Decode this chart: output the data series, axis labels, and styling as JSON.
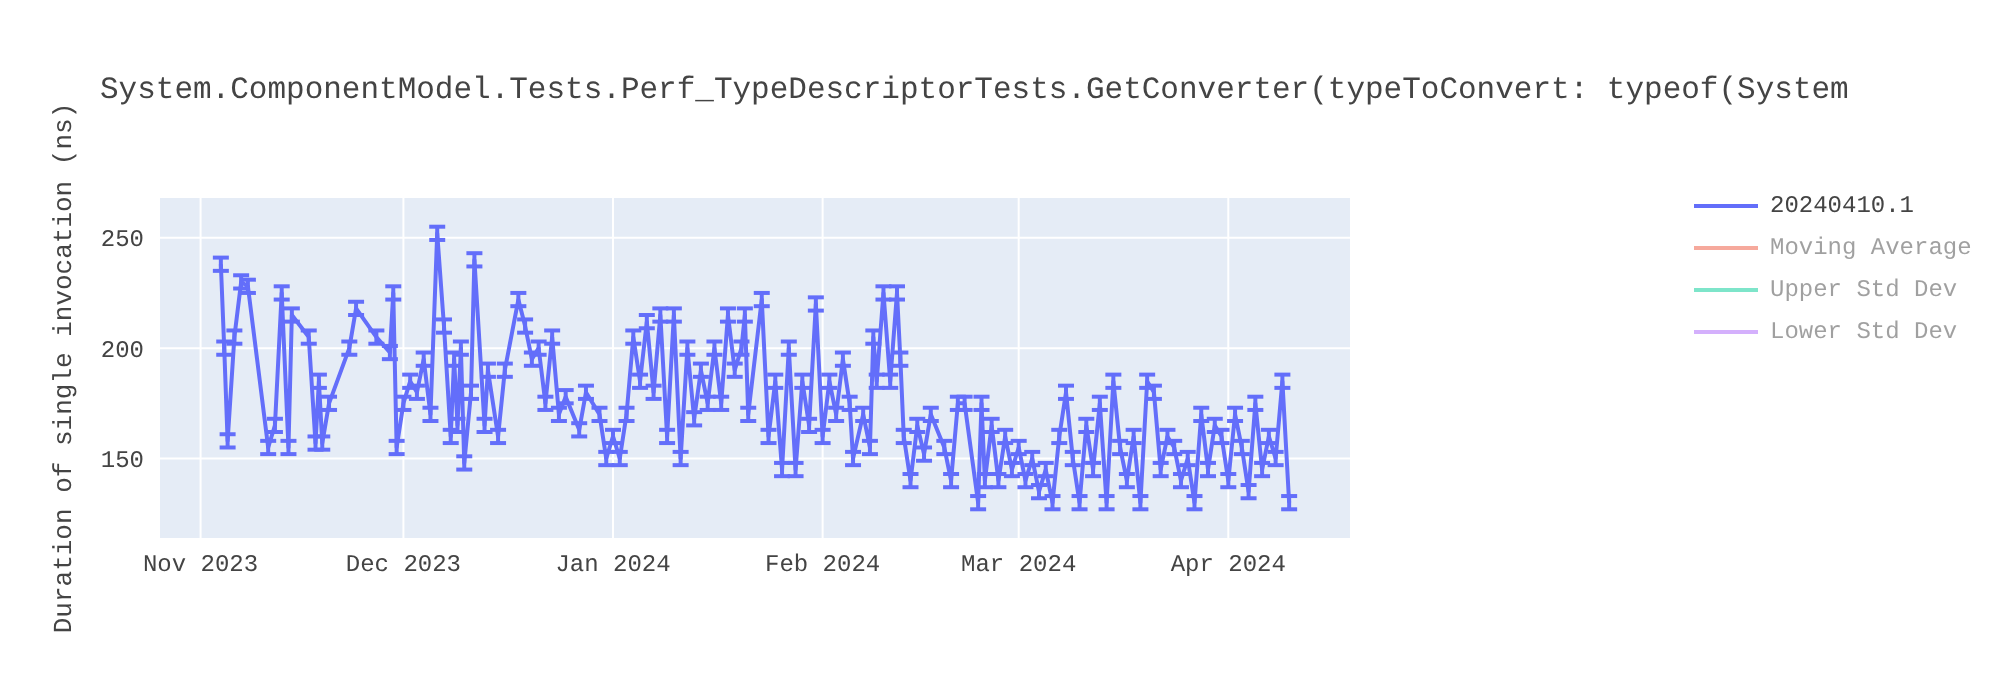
{
  "chart_data": {
    "type": "line",
    "title": "System.ComponentModel.Tests.Perf_TypeDescriptorTests.GetConverter(typeToConvert: typeof(System",
    "ylabel": "Duration of single invocation (ns)",
    "x": [
      "2023-11-04",
      "2023-11-04T12:00",
      "2023-11-05",
      "2023-11-06",
      "2023-11-07",
      "2023-11-08",
      "2023-11-11",
      "2023-11-12",
      "2023-11-13",
      "2023-11-14",
      "2023-11-14T12:00",
      "2023-11-17",
      "2023-11-18",
      "2023-11-18T12:00",
      "2023-11-19",
      "2023-11-20",
      "2023-11-23",
      "2023-11-24",
      "2023-11-27",
      "2023-11-29",
      "2023-11-29T12:00",
      "2023-11-30",
      "2023-12-01",
      "2023-12-02",
      "2023-12-03",
      "2023-12-04",
      "2023-12-05",
      "2023-12-06",
      "2023-12-07",
      "2023-12-08",
      "2023-12-08T12:00",
      "2023-12-09",
      "2023-12-09T12:00",
      "2023-12-10",
      "2023-12-11",
      "2023-12-11T12:00",
      "2023-12-13",
      "2023-12-13T12:00",
      "2023-12-15",
      "2023-12-16",
      "2023-12-18",
      "2023-12-19",
      "2023-12-20",
      "2023-12-21",
      "2023-12-22",
      "2023-12-23",
      "2023-12-24",
      "2023-12-25",
      "2023-12-27",
      "2023-12-28",
      "2023-12-30",
      "2023-12-31",
      "2024-01-01",
      "2024-01-02",
      "2024-01-03",
      "2024-01-04",
      "2024-01-05",
      "2024-01-06",
      "2024-01-07",
      "2024-01-08",
      "2024-01-09",
      "2024-01-10",
      "2024-01-11",
      "2024-01-12",
      "2024-01-13",
      "2024-01-14",
      "2024-01-15",
      "2024-01-16",
      "2024-01-17",
      "2024-01-18",
      "2024-01-19",
      "2024-01-20",
      "2024-01-20T12:00",
      "2024-01-21",
      "2024-01-23",
      "2024-01-24",
      "2024-01-25",
      "2024-01-26",
      "2024-01-27",
      "2024-01-28",
      "2024-01-29",
      "2024-01-30",
      "2024-01-31",
      "2024-02-01",
      "2024-02-02",
      "2024-02-03",
      "2024-02-04",
      "2024-02-05",
      "2024-02-05T12:00",
      "2024-02-07",
      "2024-02-08",
      "2024-02-08T12:00",
      "2024-02-09",
      "2024-02-10",
      "2024-02-11",
      "2024-02-12",
      "2024-02-12T12:00",
      "2024-02-13",
      "2024-02-14",
      "2024-02-15",
      "2024-02-16",
      "2024-02-17",
      "2024-02-19",
      "2024-02-20",
      "2024-02-21",
      "2024-02-22",
      "2024-02-24",
      "2024-02-24T12:00",
      "2024-02-25",
      "2024-02-26",
      "2024-02-27",
      "2024-02-28",
      "2024-02-29",
      "2024-03-01",
      "2024-03-02",
      "2024-03-03",
      "2024-03-04",
      "2024-03-05",
      "2024-03-06",
      "2024-03-07",
      "2024-03-08",
      "2024-03-09",
      "2024-03-10",
      "2024-03-11",
      "2024-03-12",
      "2024-03-13",
      "2024-03-14",
      "2024-03-15",
      "2024-03-16",
      "2024-03-17",
      "2024-03-18",
      "2024-03-19",
      "2024-03-20",
      "2024-03-21",
      "2024-03-22",
      "2024-03-23",
      "2024-03-24",
      "2024-03-25",
      "2024-03-26",
      "2024-03-27",
      "2024-03-28",
      "2024-03-29",
      "2024-03-30",
      "2024-03-31",
      "2024-04-01",
      "2024-04-02",
      "2024-04-03",
      "2024-04-04",
      "2024-04-05",
      "2024-04-06",
      "2024-04-07",
      "2024-04-08",
      "2024-04-09",
      "2024-04-10"
    ],
    "series": [
      {
        "name": "20240410.1",
        "color": "#636efa",
        "values": [
          238,
          200,
          158,
          205,
          230,
          228,
          155,
          165,
          225,
          155,
          215,
          205,
          157,
          185,
          157,
          175,
          200,
          218,
          205,
          198,
          225,
          155,
          175,
          185,
          180,
          195,
          170,
          252,
          210,
          160,
          195,
          165,
          200,
          148,
          180,
          240,
          165,
          190,
          160,
          190,
          222,
          210,
          195,
          200,
          175,
          205,
          170,
          178,
          163,
          180,
          170,
          150,
          160,
          150,
          170,
          205,
          185,
          212,
          180,
          215,
          160,
          215,
          150,
          200,
          168,
          190,
          175,
          200,
          175,
          215,
          190,
          200,
          215,
          170,
          222,
          160,
          185,
          145,
          200,
          145,
          185,
          165,
          220,
          160,
          185,
          170,
          195,
          175,
          150,
          170,
          155,
          205,
          185,
          225,
          185,
          225,
          195,
          160,
          140,
          165,
          152,
          170,
          155,
          140,
          175,
          175,
          130,
          175,
          140,
          165,
          140,
          160,
          145,
          155,
          140,
          150,
          135,
          145,
          130,
          160,
          180,
          150,
          130,
          165,
          145,
          175,
          130,
          185,
          155,
          140,
          160,
          130,
          185,
          180,
          145,
          160,
          155,
          140,
          150,
          130,
          170,
          145,
          165,
          160,
          140,
          170,
          155,
          135,
          175,
          145,
          160,
          150,
          185,
          130
        ],
        "errors": [
          3,
          3,
          3,
          3,
          3,
          3,
          3,
          3,
          3,
          3,
          3,
          3,
          3,
          3,
          3,
          3,
          3,
          3,
          3,
          3,
          3,
          3,
          3,
          3,
          3,
          3,
          3,
          3,
          3,
          3,
          3,
          3,
          3,
          3,
          3,
          3,
          3,
          3,
          3,
          3,
          3,
          3,
          3,
          3,
          3,
          3,
          3,
          3,
          3,
          3,
          3,
          3,
          3,
          3,
          3,
          3,
          3,
          3,
          3,
          3,
          3,
          3,
          3,
          3,
          3,
          3,
          3,
          3,
          3,
          3,
          3,
          3,
          3,
          3,
          3,
          3,
          3,
          3,
          3,
          3,
          3,
          3,
          3,
          3,
          3,
          3,
          3,
          3,
          3,
          3,
          3,
          3,
          3,
          3,
          3,
          3,
          3,
          3,
          3,
          3,
          3,
          3,
          3,
          3,
          3,
          3,
          3,
          3,
          3,
          3,
          3,
          3,
          3,
          3,
          3,
          3,
          3,
          3,
          3,
          3,
          3,
          3,
          3,
          3,
          3,
          3,
          3,
          3,
          3,
          3,
          3,
          3,
          3,
          3,
          3,
          3,
          3,
          3,
          3,
          3,
          3,
          3,
          3,
          3,
          3,
          3,
          3,
          3,
          3,
          3,
          3,
          3,
          3,
          3
        ]
      },
      {
        "name": "Moving Average",
        "color": "#ef553b",
        "values": [
          null,
          null,
          null,
          null,
          null,
          null,
          null,
          null,
          null,
          null,
          null,
          null,
          null,
          null,
          null,
          null,
          null,
          null,
          null,
          null,
          null,
          null,
          null,
          null,
          null,
          null,
          null,
          null,
          null,
          null,
          null,
          null,
          null,
          null,
          null,
          null,
          null,
          null,
          null,
          null,
          null,
          null,
          null,
          null,
          null,
          null,
          null,
          null,
          null,
          null,
          null,
          null,
          null,
          null,
          null,
          null,
          null,
          null,
          null,
          null,
          null,
          null,
          null,
          null,
          null,
          null,
          null,
          null,
          null,
          null,
          null,
          null,
          null,
          null,
          null,
          null,
          null,
          null,
          null,
          null,
          null,
          null,
          null,
          null,
          null,
          null,
          null,
          null,
          null,
          null,
          null,
          null,
          null,
          null,
          null,
          null,
          null,
          null,
          null,
          null,
          null,
          null,
          null,
          null,
          null,
          null,
          null,
          null,
          null,
          null,
          null,
          null,
          null,
          null,
          null,
          null,
          null,
          null,
          null,
          null,
          null,
          null,
          null,
          null,
          null,
          null,
          null,
          null,
          null,
          null,
          null,
          null,
          null,
          null,
          null,
          null,
          null,
          null,
          null,
          null,
          null,
          null,
          null,
          null,
          null,
          null,
          null,
          null,
          null,
          null,
          null,
          null,
          null,
          null
        ]
      },
      {
        "name": "Upper Std Dev",
        "color": "#00cc96",
        "values": [
          null,
          null,
          null,
          null,
          null,
          null,
          null,
          null,
          null,
          null,
          null,
          null,
          null,
          null,
          null,
          null,
          null,
          null,
          null,
          null,
          null,
          null,
          null,
          null,
          null,
          null,
          null,
          null,
          null,
          null,
          null,
          null,
          null,
          null,
          null,
          null,
          null,
          null,
          null,
          null,
          null,
          null,
          null,
          null,
          null,
          null,
          null,
          null,
          null,
          null,
          null,
          null,
          null,
          null,
          null,
          null,
          null,
          null,
          null,
          null,
          null,
          null,
          null,
          null,
          null,
          null,
          null,
          null,
          null,
          null,
          null,
          null,
          null,
          null,
          null,
          null,
          null,
          null,
          null,
          null,
          null,
          null,
          null,
          null,
          null,
          null,
          null,
          null,
          null,
          null,
          null,
          null,
          null,
          null,
          null,
          null,
          null,
          null,
          null,
          null,
          null,
          null,
          null,
          null,
          null,
          null,
          null,
          null,
          null,
          null,
          null,
          null,
          null,
          null,
          null,
          null,
          null,
          null,
          null,
          null,
          null,
          null,
          null,
          null,
          null,
          null,
          null,
          null,
          null,
          null,
          null,
          null,
          null,
          null,
          null,
          null,
          null,
          null,
          null,
          null,
          null,
          null,
          null,
          null,
          null,
          null,
          null,
          null,
          null,
          null,
          null,
          null,
          null,
          null
        ]
      },
      {
        "name": "Lower Std Dev",
        "color": "#ab63fa",
        "values": [
          null,
          null,
          null,
          null,
          null,
          null,
          null,
          null,
          null,
          null,
          null,
          null,
          null,
          null,
          null,
          null,
          null,
          null,
          null,
          null,
          null,
          null,
          null,
          null,
          null,
          null,
          null,
          null,
          null,
          null,
          null,
          null,
          null,
          null,
          null,
          null,
          null,
          null,
          null,
          null,
          null,
          null,
          null,
          null,
          null,
          null,
          null,
          null,
          null,
          null,
          null,
          null,
          null,
          null,
          null,
          null,
          null,
          null,
          null,
          null,
          null,
          null,
          null,
          null,
          null,
          null,
          null,
          null,
          null,
          null,
          null,
          null,
          null,
          null,
          null,
          null,
          null,
          null,
          null,
          null,
          null,
          null,
          null,
          null,
          null,
          null,
          null,
          null,
          null,
          null,
          null,
          null,
          null,
          null,
          null,
          null,
          null,
          null,
          null,
          null,
          null,
          null,
          null,
          null,
          null,
          null,
          null,
          null,
          null,
          null,
          null,
          null,
          null,
          null,
          null,
          null,
          null,
          null,
          null,
          null,
          null,
          null,
          null,
          null,
          null,
          null,
          null,
          null,
          null,
          null,
          null,
          null,
          null,
          null,
          null,
          null,
          null,
          null,
          null,
          null,
          null,
          null,
          null,
          null,
          null,
          null,
          null,
          null,
          null,
          null,
          null,
          null,
          null,
          null
        ]
      }
    ],
    "xlim": [
      "2023-10-26",
      "2024-04-19"
    ],
    "xticks": [
      {
        "value": "2023-11-01",
        "label": "Nov 2023"
      },
      {
        "value": "2023-12-01",
        "label": "Dec 2023"
      },
      {
        "value": "2024-01-01",
        "label": "Jan 2024"
      },
      {
        "value": "2024-02-01",
        "label": "Feb 2024"
      },
      {
        "value": "2024-03-01",
        "label": "Mar 2024"
      },
      {
        "value": "2024-04-01",
        "label": "Apr 2024"
      }
    ],
    "ylim": [
      114,
      268
    ],
    "yticks": [
      150,
      200,
      250
    ],
    "grid": true,
    "legend": "top right",
    "marker": "none",
    "line_style": "solid"
  }
}
